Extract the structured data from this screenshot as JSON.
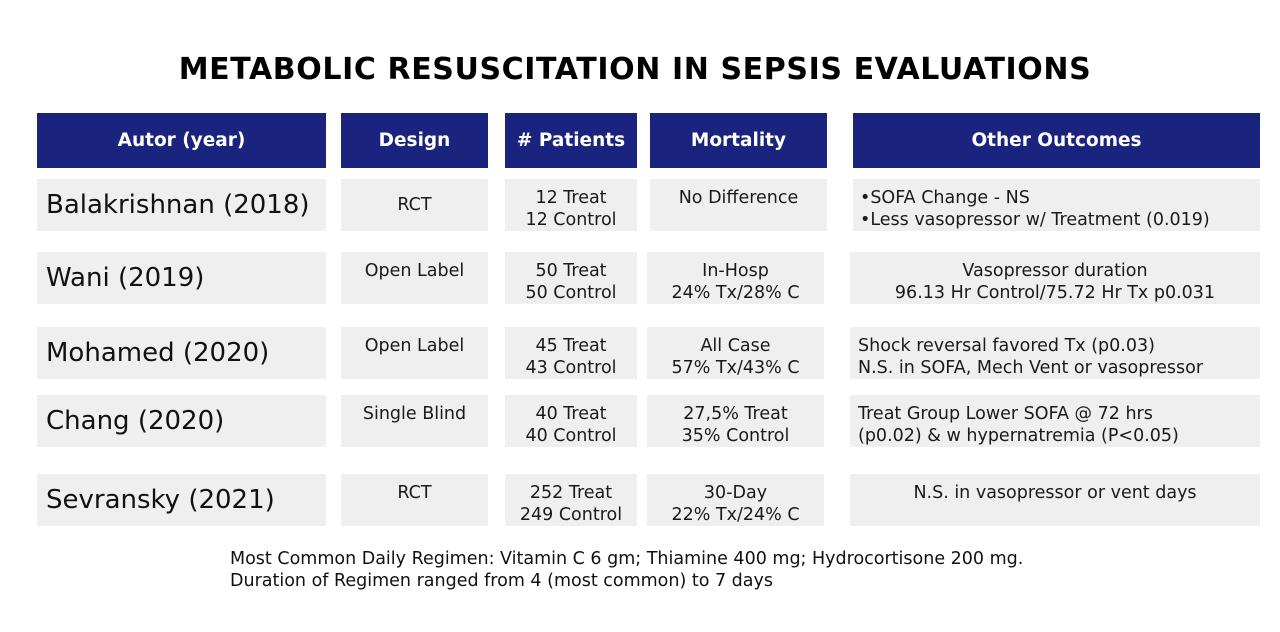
{
  "title": "METABOLIC RESUSCITATION IN SEPSIS EVALUATIONS",
  "headers": [
    "Autor (year)",
    "Design",
    "# Patients",
    "Mortality",
    "Other Outcomes"
  ],
  "rows": [
    {
      "author": "Balakrishnan (2018)",
      "design": "RCT",
      "patients": [
        "12 Treat",
        "12 Control"
      ],
      "mortality": [
        "No Difference"
      ],
      "outcomes": [
        "•SOFA Change - NS",
        "•Less vasopressor w/ Treatment  (0.019)"
      ]
    },
    {
      "author": "Wani (2019)",
      "design": "Open Label",
      "patients": [
        "50 Treat",
        "50 Control"
      ],
      "mortality": [
        "In-Hosp",
        "24% Tx/28% C"
      ],
      "outcomes": [
        "Vasopressor duration",
        "96.13 Hr Control/75.72 Hr Tx p0.031"
      ]
    },
    {
      "author": "Mohamed (2020)",
      "design": "Open Label",
      "patients": [
        "45 Treat",
        "43 Control"
      ],
      "mortality": [
        "All Case",
        "57% Tx/43% C"
      ],
      "outcomes": [
        "Shock reversal favored Tx (p0.03)",
        "N.S. in SOFA, Mech Vent or vasopressor"
      ]
    },
    {
      "author": "Chang (2020)",
      "design": "Single Blind",
      "patients": [
        "40 Treat",
        "40 Control"
      ],
      "mortality": [
        "27,5% Treat",
        "35% Control"
      ],
      "outcomes": [
        "Treat Group Lower SOFA @ 72 hrs",
        "(p0.02) & w hypernatremia (P<0.05)"
      ]
    },
    {
      "author": "Sevransky (2021)",
      "design": "RCT",
      "patients": [
        "252 Treat",
        "249 Control"
      ],
      "mortality": [
        "30-Day",
        "22% Tx/24% C"
      ],
      "outcomes": [
        "N.S. in vasopressor or vent days"
      ]
    }
  ],
  "footer": [
    "Most Common Daily Regimen: Vitamin C 6 gm; Thiamine 400 mg; Hydrocortisone 200 mg.",
    "Duration of Regimen ranged from 4 (most common) to 7 days"
  ]
}
